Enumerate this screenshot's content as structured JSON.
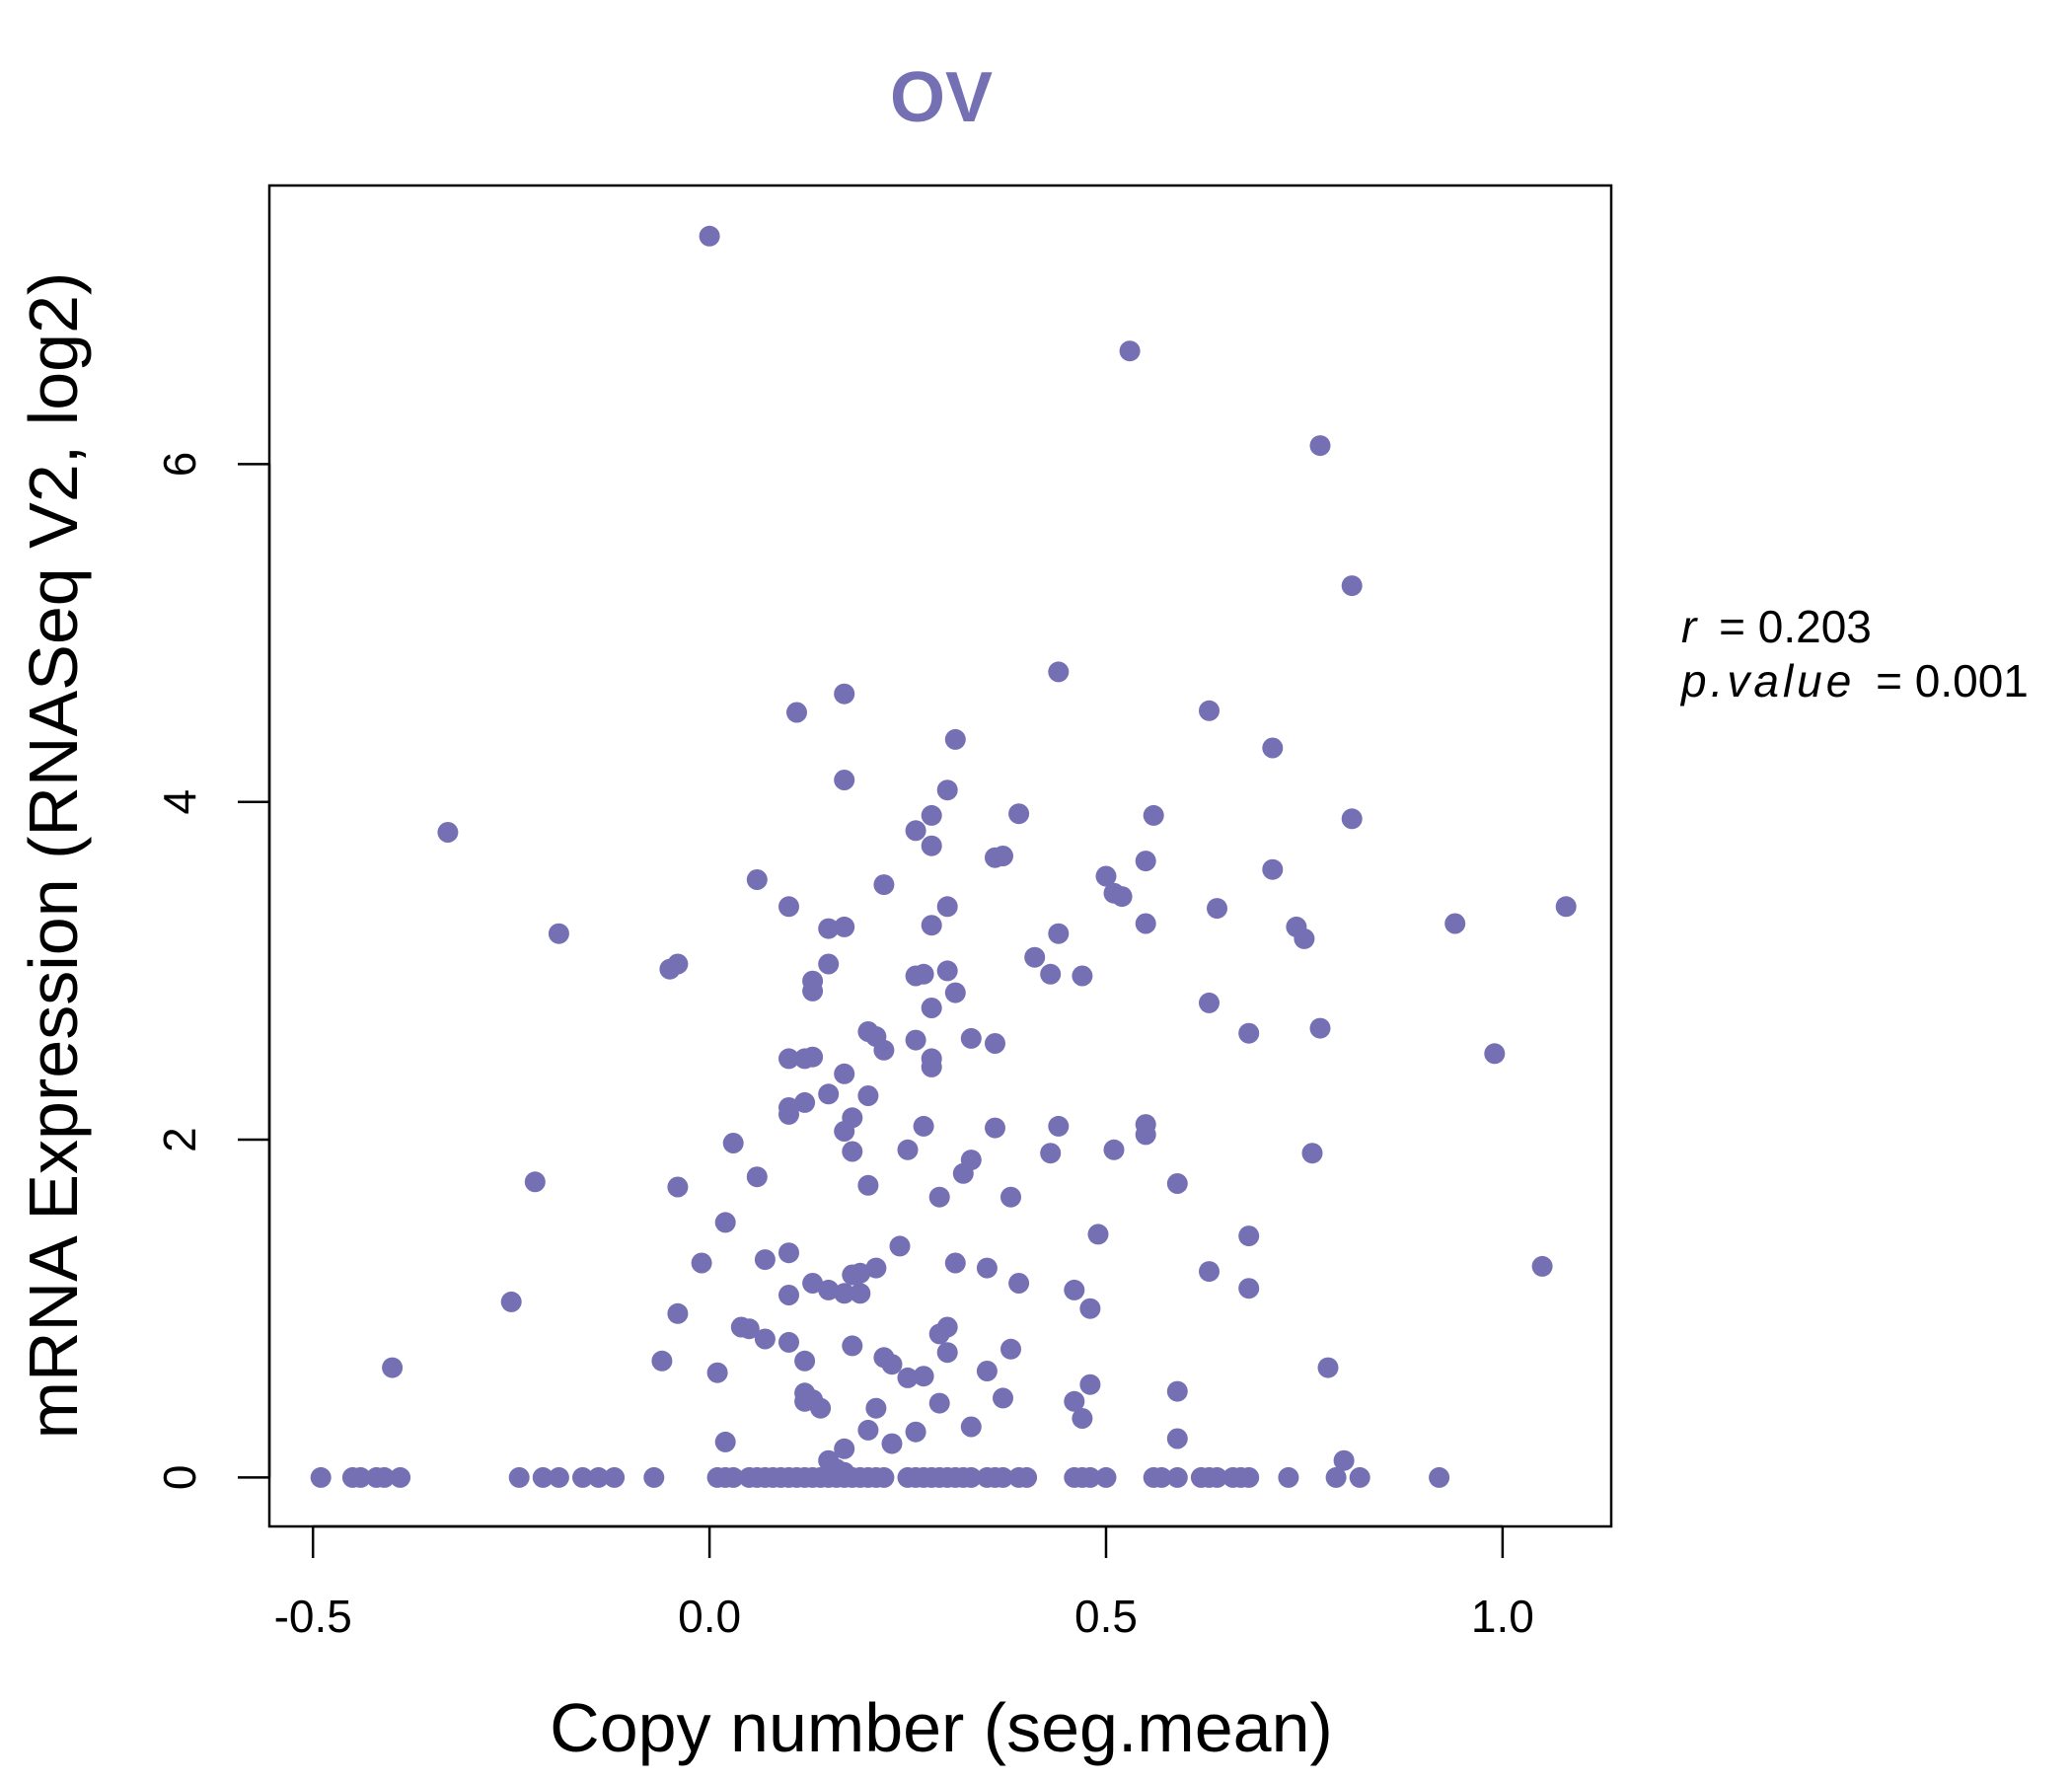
{
  "chart_data": {
    "type": "scatter",
    "title": "OV",
    "xlabel": "Copy number (seg.mean)",
    "ylabel": "mRNA Expression (RNASeq V2, log2)",
    "xlim": [
      -0.555,
      1.137
    ],
    "ylim": [
      -0.29,
      7.65
    ],
    "x_ticks": [
      -0.5,
      0.0,
      0.5,
      1.0
    ],
    "x_tick_labels": [
      "-0.5",
      "0.0",
      "0.5",
      "1.0"
    ],
    "y_ticks": [
      0,
      2,
      4,
      6
    ],
    "y_tick_labels": [
      "0",
      "2",
      "4",
      "6"
    ],
    "point_color": "#7570b3",
    "grid": false,
    "legend": false,
    "stats": {
      "r_label": "r",
      "r_value": "= 0.203",
      "p_label": "p.value",
      "p_value": "= 0.001"
    },
    "points": [
      [
        0.0,
        7.35
      ],
      [
        0.53,
        6.67
      ],
      [
        0.77,
        6.11
      ],
      [
        0.81,
        5.28
      ],
      [
        0.44,
        4.77
      ],
      [
        0.17,
        4.64
      ],
      [
        0.11,
        4.53
      ],
      [
        0.63,
        4.54
      ],
      [
        0.31,
        4.37
      ],
      [
        0.71,
        4.32
      ],
      [
        0.17,
        4.13
      ],
      [
        0.3,
        4.07
      ],
      [
        0.39,
        3.93
      ],
      [
        0.28,
        3.92
      ],
      [
        0.56,
        3.92
      ],
      [
        0.81,
        3.9
      ],
      [
        -0.33,
        3.82
      ],
      [
        0.26,
        3.83
      ],
      [
        0.28,
        3.74
      ],
      [
        0.36,
        3.67
      ],
      [
        0.37,
        3.68
      ],
      [
        0.55,
        3.65
      ],
      [
        0.71,
        3.6
      ],
      [
        0.06,
        3.54
      ],
      [
        0.5,
        3.56
      ],
      [
        0.22,
        3.51
      ],
      [
        0.51,
        3.46
      ],
      [
        0.52,
        3.44
      ],
      [
        0.1,
        3.38
      ],
      [
        0.3,
        3.38
      ],
      [
        0.64,
        3.37
      ],
      [
        1.08,
        3.38
      ],
      [
        0.55,
        3.28
      ],
      [
        0.94,
        3.28
      ],
      [
        0.15,
        3.25
      ],
      [
        0.17,
        3.26
      ],
      [
        0.28,
        3.27
      ],
      [
        0.74,
        3.26
      ],
      [
        0.44,
        3.22
      ],
      [
        -0.19,
        3.22
      ],
      [
        0.75,
        3.19
      ],
      [
        0.41,
        3.08
      ],
      [
        -0.04,
        3.04
      ],
      [
        -0.05,
        3.01
      ],
      [
        0.15,
        3.04
      ],
      [
        0.3,
        3.0
      ],
      [
        0.26,
        2.97
      ],
      [
        0.27,
        2.98
      ],
      [
        0.43,
        2.98
      ],
      [
        0.47,
        2.97
      ],
      [
        0.13,
        2.94
      ],
      [
        0.13,
        2.88
      ],
      [
        0.31,
        2.87
      ],
      [
        0.63,
        2.81
      ],
      [
        0.28,
        2.78
      ],
      [
        0.68,
        2.63
      ],
      [
        0.77,
        2.66
      ],
      [
        0.2,
        2.64
      ],
      [
        0.21,
        2.61
      ],
      [
        0.33,
        2.6
      ],
      [
        0.26,
        2.59
      ],
      [
        0.36,
        2.57
      ],
      [
        0.22,
        2.53
      ],
      [
        0.99,
        2.51
      ],
      [
        0.1,
        2.48
      ],
      [
        0.12,
        2.48
      ],
      [
        0.13,
        2.49
      ],
      [
        0.28,
        2.48
      ],
      [
        0.28,
        2.43
      ],
      [
        0.17,
        2.39
      ],
      [
        0.15,
        2.27
      ],
      [
        0.2,
        2.26
      ],
      [
        0.12,
        2.22
      ],
      [
        0.1,
        2.19
      ],
      [
        0.1,
        2.15
      ],
      [
        0.18,
        2.13
      ],
      [
        0.27,
        2.08
      ],
      [
        0.36,
        2.07
      ],
      [
        0.44,
        2.08
      ],
      [
        0.55,
        2.09
      ],
      [
        0.17,
        2.05
      ],
      [
        0.55,
        2.03
      ],
      [
        0.03,
        1.98
      ],
      [
        0.18,
        1.93
      ],
      [
        0.25,
        1.94
      ],
      [
        0.51,
        1.94
      ],
      [
        0.43,
        1.92
      ],
      [
        0.76,
        1.92
      ],
      [
        0.33,
        1.88
      ],
      [
        0.32,
        1.8
      ],
      [
        0.06,
        1.78
      ],
      [
        -0.22,
        1.75
      ],
      [
        0.59,
        1.74
      ],
      [
        0.2,
        1.73
      ],
      [
        -0.04,
        1.72
      ],
      [
        0.29,
        1.66
      ],
      [
        0.38,
        1.66
      ],
      [
        0.02,
        1.51
      ],
      [
        0.49,
        1.44
      ],
      [
        0.68,
        1.43
      ],
      [
        0.24,
        1.37
      ],
      [
        0.1,
        1.33
      ],
      [
        0.07,
        1.29
      ],
      [
        -0.01,
        1.27
      ],
      [
        0.31,
        1.27
      ],
      [
        0.35,
        1.24
      ],
      [
        0.21,
        1.24
      ],
      [
        1.05,
        1.25
      ],
      [
        0.19,
        1.21
      ],
      [
        0.63,
        1.22
      ],
      [
        0.18,
        1.2
      ],
      [
        0.13,
        1.15
      ],
      [
        0.39,
        1.15
      ],
      [
        0.15,
        1.11
      ],
      [
        0.17,
        1.09
      ],
      [
        0.19,
        1.09
      ],
      [
        0.46,
        1.11
      ],
      [
        0.68,
        1.12
      ],
      [
        0.1,
        1.08
      ],
      [
        -0.25,
        1.04
      ],
      [
        0.48,
        1.0
      ],
      [
        -0.04,
        0.97
      ],
      [
        0.04,
        0.89
      ],
      [
        0.05,
        0.88
      ],
      [
        0.3,
        0.89
      ],
      [
        0.29,
        0.85
      ],
      [
        0.07,
        0.82
      ],
      [
        0.1,
        0.8
      ],
      [
        0.18,
        0.78
      ],
      [
        0.38,
        0.76
      ],
      [
        0.3,
        0.74
      ],
      [
        0.22,
        0.71
      ],
      [
        0.12,
        0.69
      ],
      [
        -0.06,
        0.69
      ],
      [
        0.23,
        0.67
      ],
      [
        -0.4,
        0.65
      ],
      [
        0.78,
        0.65
      ],
      [
        0.35,
        0.63
      ],
      [
        0.01,
        0.62
      ],
      [
        0.27,
        0.6
      ],
      [
        0.25,
        0.59
      ],
      [
        0.48,
        0.55
      ],
      [
        0.59,
        0.51
      ],
      [
        0.12,
        0.5
      ],
      [
        0.13,
        0.46
      ],
      [
        0.12,
        0.45
      ],
      [
        0.37,
        0.47
      ],
      [
        0.46,
        0.45
      ],
      [
        0.29,
        0.44
      ],
      [
        0.14,
        0.41
      ],
      [
        0.21,
        0.41
      ],
      [
        0.47,
        0.35
      ],
      [
        0.33,
        0.3
      ],
      [
        0.2,
        0.28
      ],
      [
        0.26,
        0.27
      ],
      [
        0.02,
        0.21
      ],
      [
        0.59,
        0.23
      ],
      [
        0.23,
        0.2
      ],
      [
        0.17,
        0.17
      ],
      [
        0.15,
        0.1
      ],
      [
        0.8,
        0.1
      ],
      [
        0.16,
        0.05
      ],
      [
        0.17,
        0.03
      ],
      [
        -0.49,
        0.0
      ],
      [
        -0.45,
        0.0
      ],
      [
        -0.44,
        0.0
      ],
      [
        -0.42,
        0.0
      ],
      [
        -0.41,
        0.0
      ],
      [
        -0.39,
        0.0
      ],
      [
        -0.24,
        0.0
      ],
      [
        -0.21,
        0.0
      ],
      [
        -0.19,
        0.0
      ],
      [
        -0.16,
        0.0
      ],
      [
        -0.14,
        0.0
      ],
      [
        -0.12,
        0.0
      ],
      [
        -0.07,
        0.0
      ],
      [
        0.01,
        0.0
      ],
      [
        0.02,
        0.0
      ],
      [
        0.03,
        0.0
      ],
      [
        0.05,
        0.0
      ],
      [
        0.06,
        0.0
      ],
      [
        0.07,
        0.0
      ],
      [
        0.08,
        0.0
      ],
      [
        0.09,
        0.0
      ],
      [
        0.1,
        0.0
      ],
      [
        0.11,
        0.0
      ],
      [
        0.12,
        0.0
      ],
      [
        0.13,
        0.0
      ],
      [
        0.14,
        0.0
      ],
      [
        0.15,
        0.0
      ],
      [
        0.16,
        0.0
      ],
      [
        0.17,
        0.0
      ],
      [
        0.18,
        0.0
      ],
      [
        0.19,
        0.0
      ],
      [
        0.2,
        0.0
      ],
      [
        0.21,
        0.0
      ],
      [
        0.22,
        0.0
      ],
      [
        0.25,
        0.0
      ],
      [
        0.26,
        0.0
      ],
      [
        0.27,
        0.0
      ],
      [
        0.28,
        0.0
      ],
      [
        0.29,
        0.0
      ],
      [
        0.3,
        0.0
      ],
      [
        0.31,
        0.0
      ],
      [
        0.32,
        0.0
      ],
      [
        0.33,
        0.0
      ],
      [
        0.35,
        0.0
      ],
      [
        0.36,
        0.0
      ],
      [
        0.37,
        0.0
      ],
      [
        0.39,
        0.0
      ],
      [
        0.4,
        0.0
      ],
      [
        0.46,
        0.0
      ],
      [
        0.47,
        0.0
      ],
      [
        0.48,
        0.0
      ],
      [
        0.5,
        0.0
      ],
      [
        0.56,
        0.0
      ],
      [
        0.57,
        0.0
      ],
      [
        0.59,
        0.0
      ],
      [
        0.62,
        0.0
      ],
      [
        0.63,
        0.0
      ],
      [
        0.64,
        0.0
      ],
      [
        0.66,
        0.0
      ],
      [
        0.67,
        0.0
      ],
      [
        0.68,
        0.0
      ],
      [
        0.73,
        0.0
      ],
      [
        0.79,
        0.0
      ],
      [
        0.82,
        0.0
      ],
      [
        0.92,
        0.0
      ]
    ]
  }
}
